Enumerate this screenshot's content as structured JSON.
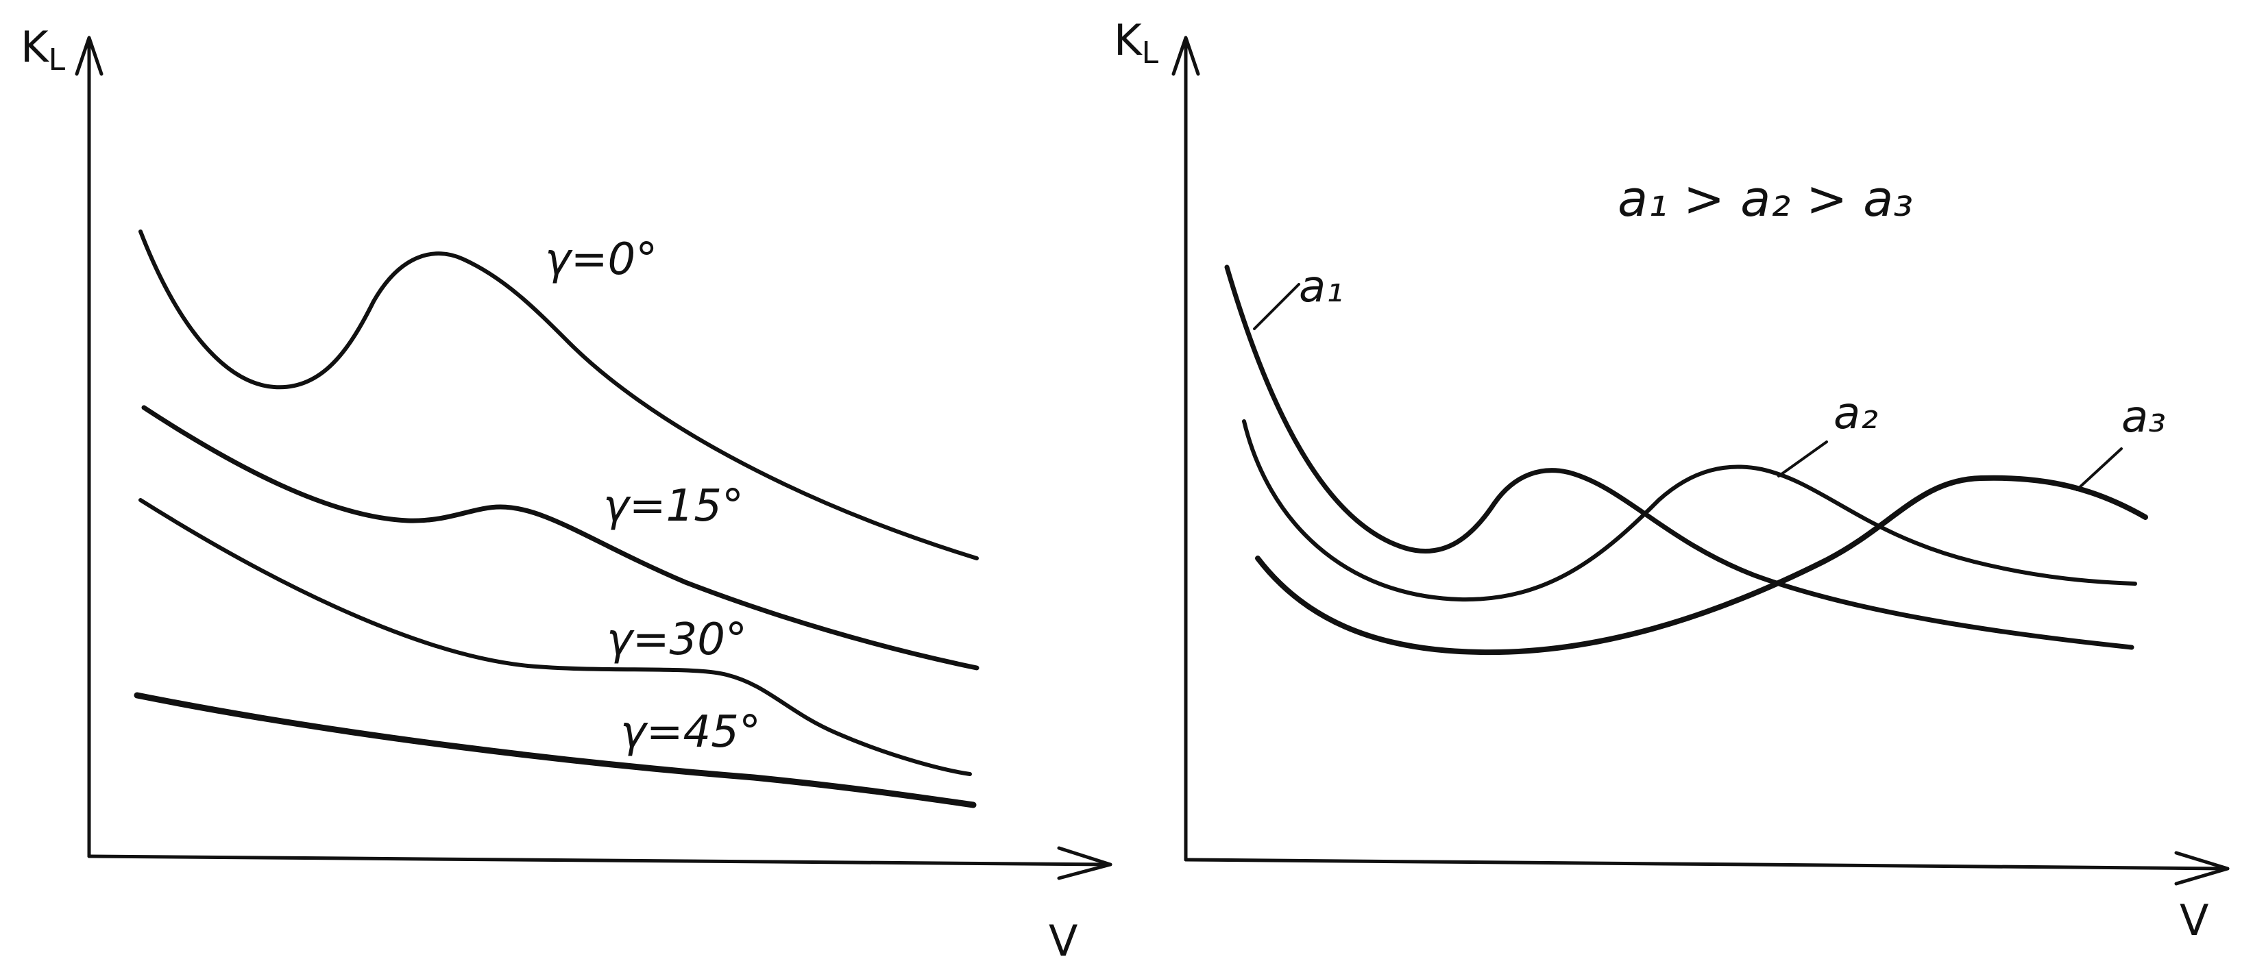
{
  "panels": [
    {
      "y_axis_label": "K",
      "y_axis_label_sub": "L",
      "x_axis_label": "V",
      "relation_text": "",
      "curves": [
        {
          "label": "γ=0°"
        },
        {
          "label": "γ=15°"
        },
        {
          "label": "γ=30°"
        },
        {
          "label": "γ=45°"
        }
      ]
    },
    {
      "y_axis_label": "K",
      "y_axis_label_sub": "L",
      "x_axis_label": "V",
      "relation_text": "a₁ > a₂ > a₃",
      "curves": [
        {
          "label": "a₁"
        },
        {
          "label": "a₂"
        },
        {
          "label": "a₃"
        }
      ]
    }
  ]
}
